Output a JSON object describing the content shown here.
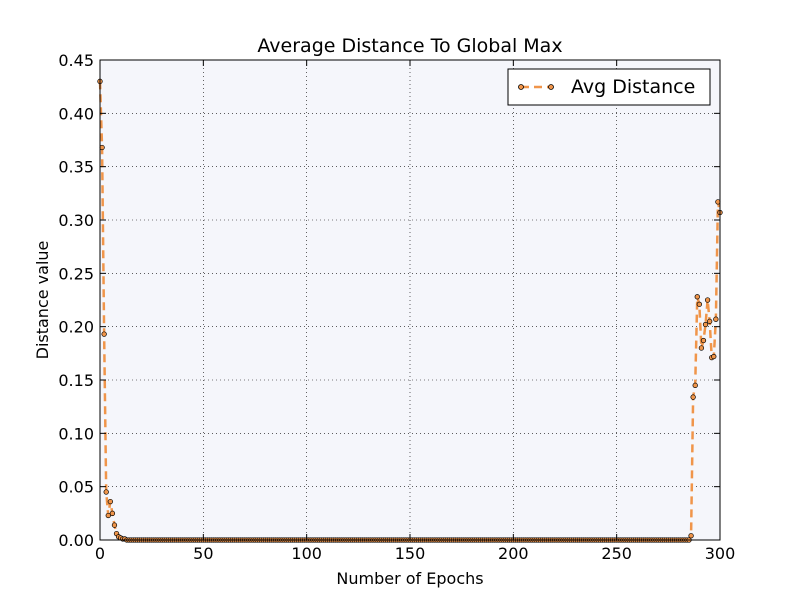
{
  "chart_data": {
    "type": "line",
    "title": "Average Distance To Global Max",
    "xlabel": "Number of Epochs",
    "ylabel": "Distance value",
    "xlim": [
      0,
      300
    ],
    "ylim": [
      0,
      0.45
    ],
    "x_ticks": [
      "0",
      "50",
      "100",
      "150",
      "200",
      "250",
      "300"
    ],
    "y_ticks": [
      "0.00",
      "0.05",
      "0.10",
      "0.15",
      "0.20",
      "0.25",
      "0.30",
      "0.35",
      "0.40",
      "0.45"
    ],
    "grid": true,
    "legend_position": "top-right",
    "background_color": "#f5f6fb",
    "series": [
      {
        "name": "Avg Distance",
        "color": "#f0954a",
        "marker": "circle",
        "line_style": "dashed",
        "points": [
          [
            0,
            0.43
          ],
          [
            1,
            0.368
          ],
          [
            2,
            0.193
          ],
          [
            3,
            0.045
          ],
          [
            4,
            0.023
          ],
          [
            5,
            0.036
          ],
          [
            6,
            0.025
          ],
          [
            7,
            0.014
          ],
          [
            8,
            0.006
          ],
          [
            9,
            0.003
          ],
          [
            10,
            0.002
          ],
          [
            11,
            0.001
          ],
          [
            12,
            0.001
          ],
          [
            284,
            0.0
          ],
          [
            285,
            0.0
          ],
          [
            286,
            0.004
          ],
          [
            287,
            0.134
          ],
          [
            288,
            0.145
          ],
          [
            289,
            0.228
          ],
          [
            290,
            0.221
          ],
          [
            291,
            0.18
          ],
          [
            292,
            0.187
          ],
          [
            293,
            0.202
          ],
          [
            294,
            0.225
          ],
          [
            295,
            0.205
          ],
          [
            296,
            0.171
          ],
          [
            297,
            0.172
          ],
          [
            298,
            0.207
          ],
          [
            299,
            0.317
          ],
          [
            300,
            0.307
          ]
        ],
        "zero_range": [
          13,
          283
        ]
      }
    ]
  }
}
